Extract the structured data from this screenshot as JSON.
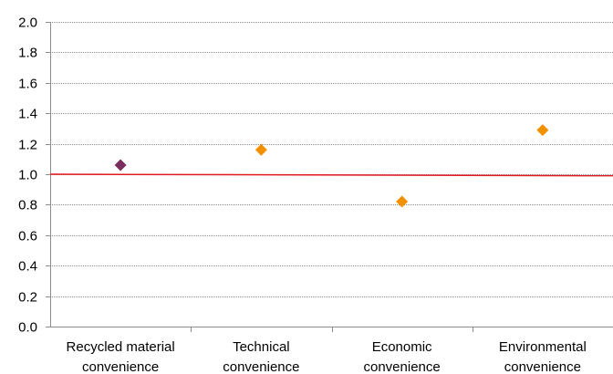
{
  "chart_data": {
    "type": "scatter",
    "categories": [
      [
        "Recycled material",
        "convenience"
      ],
      [
        "Technical",
        "convenience"
      ],
      [
        "Economic",
        "convenience"
      ],
      [
        "Environmental",
        "convenience"
      ]
    ],
    "ylim": [
      0,
      2.0
    ],
    "y_ticks": [
      "0.0",
      "0.2",
      "0.4",
      "0.6",
      "0.8",
      "1.0",
      "1.2",
      "1.4",
      "1.6",
      "1.8",
      "2.0"
    ],
    "points": [
      {
        "category": 0,
        "value": 1.06,
        "color": "#7b2d5e"
      },
      {
        "category": 1,
        "value": 1.16,
        "color": "#f29100"
      },
      {
        "category": 2,
        "value": 0.82,
        "color": "#f29100"
      },
      {
        "category": 3,
        "value": 1.29,
        "color": "#f29100"
      }
    ],
    "reference_line": {
      "y_start": 1.0,
      "y_end": 0.99,
      "color": "#e0191f"
    },
    "grid": true,
    "grid_color": "#8c8c8c",
    "axis_color": "#8c8c8c",
    "marker": "diamond"
  }
}
